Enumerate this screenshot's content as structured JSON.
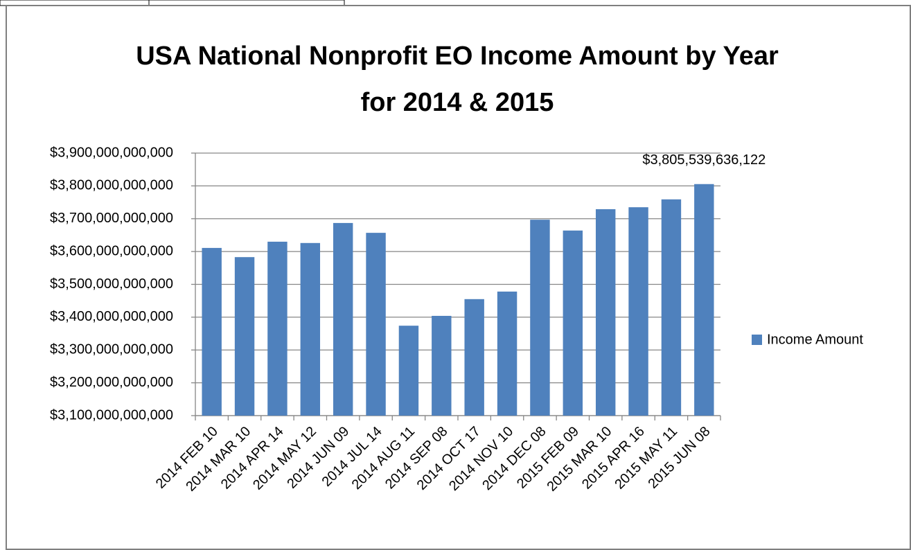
{
  "chart_data": {
    "type": "bar",
    "title": "USA National Nonprofit EO Income Amount by Year for 2014 & 2015",
    "categories": [
      "2014 FEB 10",
      "2014 MAR 10",
      "2014 APR 14",
      "2014 MAY 12",
      "2014 JUN 09",
      "2014 JUL 14",
      "2014 AUG 11",
      "2014 SEP 08",
      "2014 OCT 17",
      "2014 NOV 10",
      "2014 DEC 08",
      "2015 FEB 09",
      "2015 MAR 10",
      "2015 APR 16",
      "2015 MAY 11",
      "2015 JUN 08"
    ],
    "series": [
      {
        "name": "Income Amount",
        "color": "#4f81bd",
        "values": [
          3611000000000,
          3583000000000,
          3630000000000,
          3626000000000,
          3687000000000,
          3657000000000,
          3374000000000,
          3404000000000,
          3455000000000,
          3478000000000,
          3697000000000,
          3664000000000,
          3729000000000,
          3735000000000,
          3759000000000,
          3805539636122
        ],
        "value_labels": [
          null,
          null,
          null,
          null,
          null,
          null,
          null,
          null,
          null,
          null,
          null,
          null,
          null,
          null,
          null,
          "$3,805,539,636,122"
        ]
      }
    ],
    "ylim": [
      3100000000000,
      3900000000000
    ],
    "yticks": [
      {
        "value": 3100000000000,
        "label": "$3,100,000,000,000"
      },
      {
        "value": 3200000000000,
        "label": "$3,200,000,000,000"
      },
      {
        "value": 3300000000000,
        "label": "$3,300,000,000,000"
      },
      {
        "value": 3400000000000,
        "label": "$3,400,000,000,000"
      },
      {
        "value": 3500000000000,
        "label": "$3,500,000,000,000"
      },
      {
        "value": 3600000000000,
        "label": "$3,600,000,000,000"
      },
      {
        "value": 3700000000000,
        "label": "$3,700,000,000,000"
      },
      {
        "value": 3800000000000,
        "label": "$3,800,000,000,000"
      },
      {
        "value": 3900000000000,
        "label": "$3,900,000,000,000"
      }
    ],
    "grid": true,
    "legend": "right"
  }
}
